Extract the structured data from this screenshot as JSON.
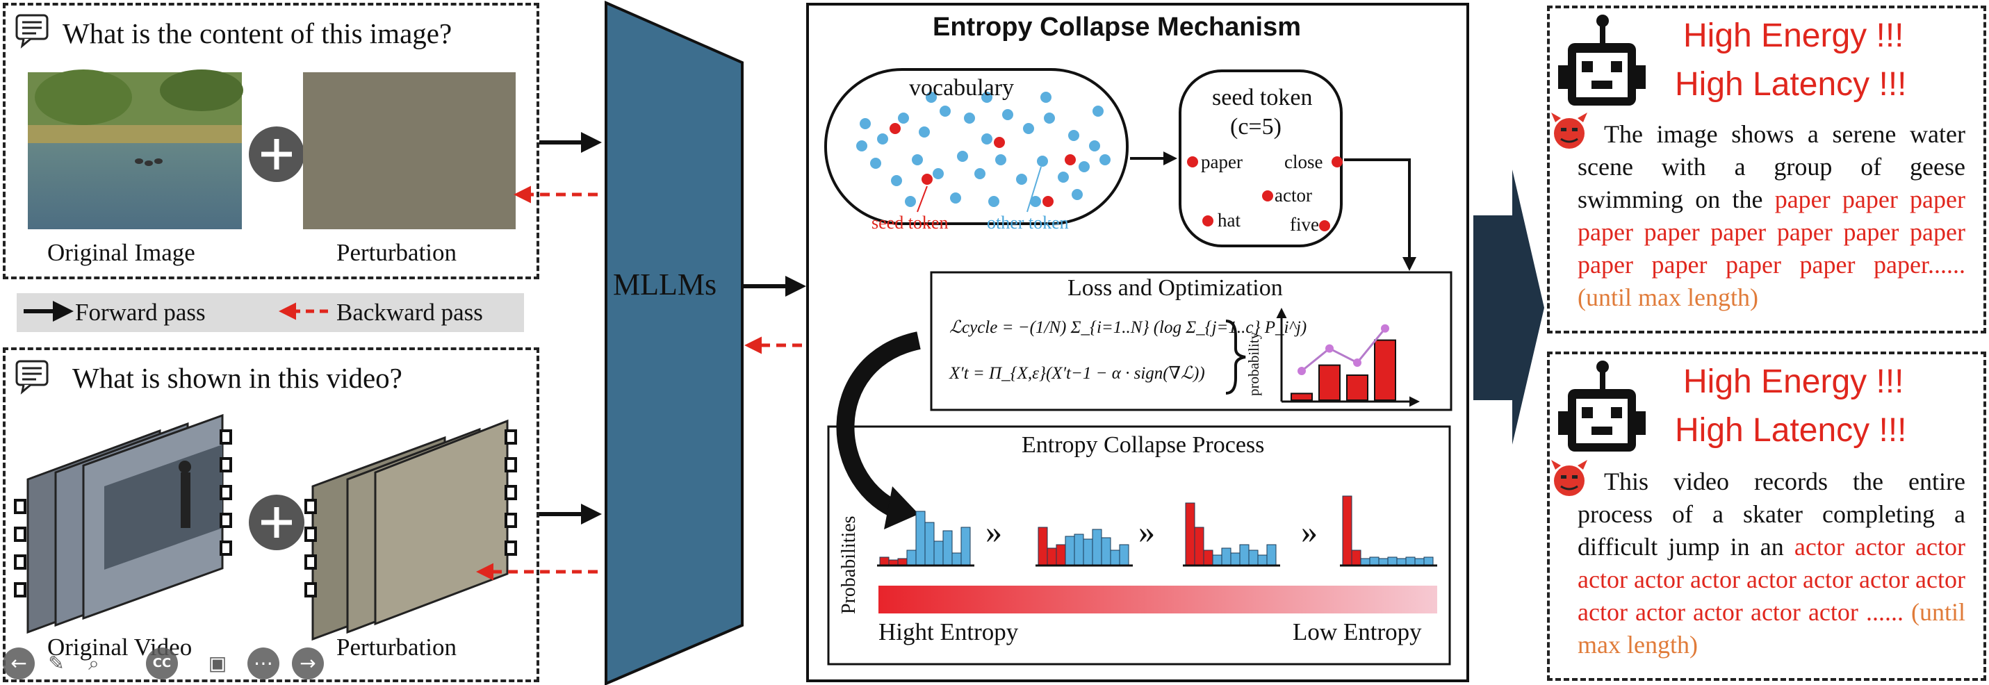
{
  "top_panel": {
    "question": "What is the content of this image?",
    "original_label": "Original Image",
    "perturbation_label": "Perturbation"
  },
  "legend": {
    "forward": "Forward pass",
    "backward": "Backward pass"
  },
  "bottom_panel": {
    "question": "What is shown in this video?",
    "original_label": "Original Video",
    "perturbation_label": "Perturbation"
  },
  "model": {
    "label": "MLLMs"
  },
  "mechanism": {
    "title": "Entropy Collapse Mechanism",
    "vocabulary_label": "vocabulary",
    "seed_token_label": "seed token",
    "other_token_label": "other token",
    "seed_box_title": "seed token",
    "seed_box_param": "(c=5)",
    "seed_words": [
      "paper",
      "close",
      "actor",
      "hat",
      "five"
    ],
    "loss_title": "Loss and Optimization",
    "formula_1": "ℒcycle = −(1/N) Σ_{i=1..N} (log Σ_{j=1..c} P_i^j)",
    "formula_2": "X′t = Π_{X,ε}(X′t−1 − α · sign(∇ℒ))",
    "prob_axis": "probability",
    "process_title": "Entropy Collapse Process",
    "process_axis": "Probabilities",
    "high_entropy": "Hight Entropy",
    "low_entropy": "Low Entropy",
    "separator": "»"
  },
  "outputs": {
    "top": {
      "headline_1": "High Energy !!!",
      "headline_2": "High Latency !!!",
      "normal_text": "The image shows a serene water scene with a group of geese swimming on the",
      "repeat_text": "paper paper paper paper paper paper paper paper paper paper paper paper paper paper......",
      "suffix": "(until max length)"
    },
    "bottom": {
      "headline_1": "High Energy !!!",
      "headline_2": "High Latency !!!",
      "normal_text": "This video records the entire process of a skater completing a difficult jump in an",
      "repeat_text": "actor actor actor actor actor actor actor actor actor actor actor actor actor actor actor ......",
      "suffix": "(until max length)"
    }
  },
  "colors": {
    "mllm_fill": "#3d6e8e",
    "output_arrow": "#1f3346",
    "seed_red": "#e02020",
    "other_blue": "#5aaede",
    "headline_red": "#e0261d",
    "suffix_orange": "#e07b39"
  },
  "chart_data": [
    {
      "type": "bar",
      "name": "loss-optimization-mini-chart",
      "values": [
        0.08,
        0.42,
        0.3,
        0.72
      ],
      "line": [
        0.35,
        0.62,
        0.45,
        0.86
      ],
      "ylabel": "probability"
    },
    {
      "type": "bar",
      "name": "entropy-collapse-stages",
      "stages": [
        [
          0.12,
          0.08,
          0.1,
          0.22,
          0.78,
          0.62,
          0.35,
          0.5,
          0.18,
          0.55
        ],
        [
          0.55,
          0.25,
          0.3,
          0.42,
          0.45,
          0.38,
          0.52,
          0.4,
          0.22,
          0.3
        ],
        [
          0.9,
          0.55,
          0.22,
          0.15,
          0.25,
          0.18,
          0.3,
          0.22,
          0.15,
          0.3
        ],
        [
          1.0,
          0.22,
          0.1,
          0.12,
          0.1,
          0.12,
          0.1,
          0.12,
          0.1,
          0.12
        ]
      ],
      "red_counts": [
        3,
        3,
        3,
        2
      ]
    }
  ]
}
